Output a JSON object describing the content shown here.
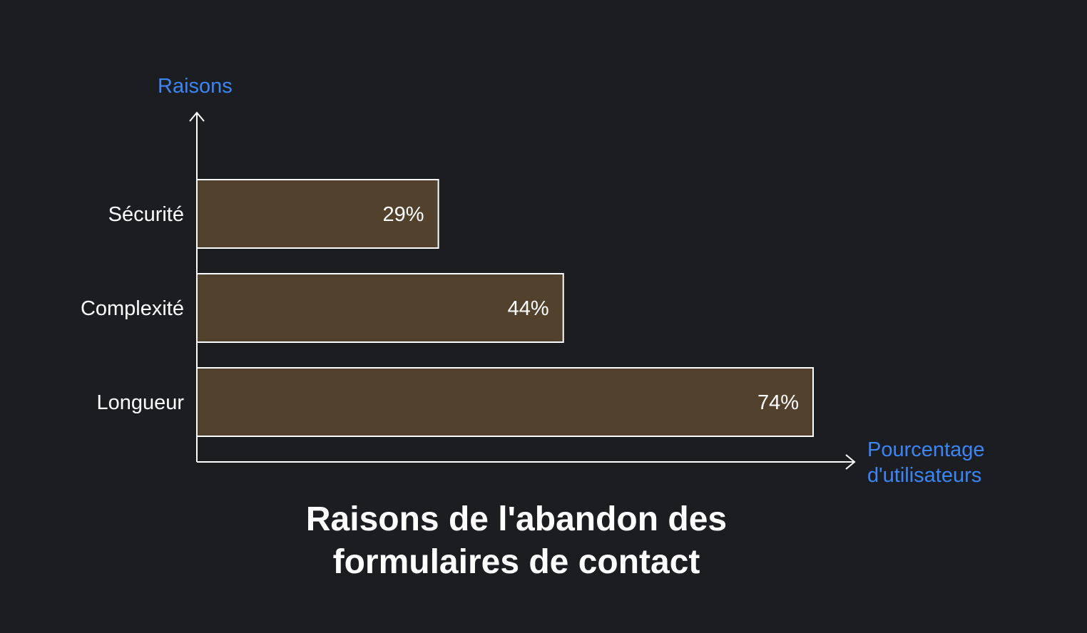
{
  "chart_data": {
    "type": "bar",
    "orientation": "horizontal",
    "title_lines": [
      "Raisons de l'abandon des",
      "formulaires de contact"
    ],
    "ylabel": "Raisons",
    "xlabel_lines": [
      "Pourcentage",
      "d'utilisateurs"
    ],
    "categories": [
      "Sécurité",
      "Complexité",
      "Longueur"
    ],
    "values": [
      29,
      44,
      74
    ],
    "value_labels": [
      "29%",
      "44%",
      "74%"
    ],
    "xlim": [
      0,
      74
    ],
    "grid": false,
    "legend": "none",
    "colors": {
      "background": "#1c1d21",
      "bar_fill": "#51412d",
      "bar_stroke": "#ffffff",
      "axis": "#ffffff",
      "axis_label": "#3b86f7",
      "text": "#ffffff"
    }
  }
}
